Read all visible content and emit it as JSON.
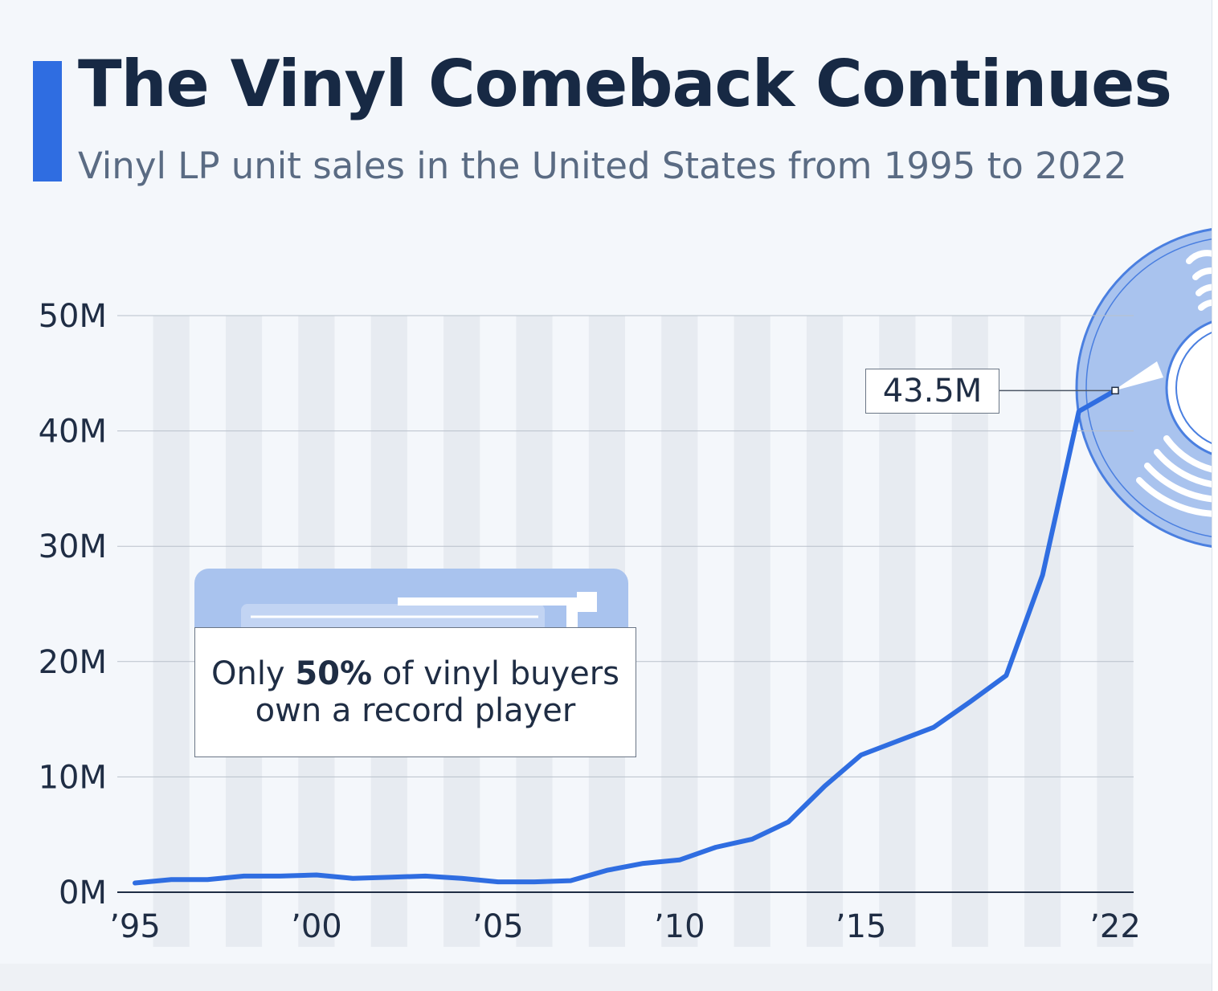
{
  "header": {
    "title": "The Vinyl Comeback Continues",
    "subtitle": "Vinyl LP unit sales in the United States from 1995 to 2022"
  },
  "callout": {
    "text_before": "Only",
    "highlight": "50%",
    "text_after": "of vinyl buyers own a record player"
  },
  "colors": {
    "line": "#2f6de1",
    "accent": "#2f6de1",
    "illustration": "#a9c3ee",
    "title": "#172944"
  },
  "chart_data": {
    "type": "line",
    "title": "The Vinyl Comeback Continues",
    "subtitle": "Vinyl LP unit sales in the United States from 1995 to 2022",
    "xlabel": "",
    "ylabel": "",
    "x": [
      1995,
      1996,
      1997,
      1998,
      1999,
      2000,
      2001,
      2002,
      2003,
      2004,
      2005,
      2006,
      2007,
      2008,
      2009,
      2010,
      2011,
      2012,
      2013,
      2014,
      2015,
      2016,
      2017,
      2018,
      2019,
      2020,
      2021,
      2022
    ],
    "x_tick_values": [
      1995,
      2000,
      2005,
      2010,
      2015,
      2022
    ],
    "x_tick_labels": [
      "’95",
      "’00",
      "’05",
      "’10",
      "’15",
      "’22"
    ],
    "series": [
      {
        "values": [
          0.8,
          1.1,
          1.1,
          1.4,
          1.4,
          1.5,
          1.2,
          1.3,
          1.4,
          1.2,
          0.9,
          0.9,
          1.0,
          1.9,
          2.5,
          2.8,
          3.9,
          4.6,
          6.1,
          9.2,
          11.9,
          13.1,
          14.3,
          16.5,
          18.8,
          27.5,
          41.7,
          43.5
        ]
      }
    ],
    "ylim": [
      0,
      50
    ],
    "y_ticks": [
      0,
      10,
      20,
      30,
      40,
      50
    ],
    "y_tick_labels": [
      "0M",
      "10M",
      "20M",
      "30M",
      "40M",
      "50M"
    ],
    "annotations": [
      {
        "x": 2022,
        "y": 43.5,
        "label": "43.5M"
      }
    ],
    "grid": true,
    "legend": "none"
  }
}
